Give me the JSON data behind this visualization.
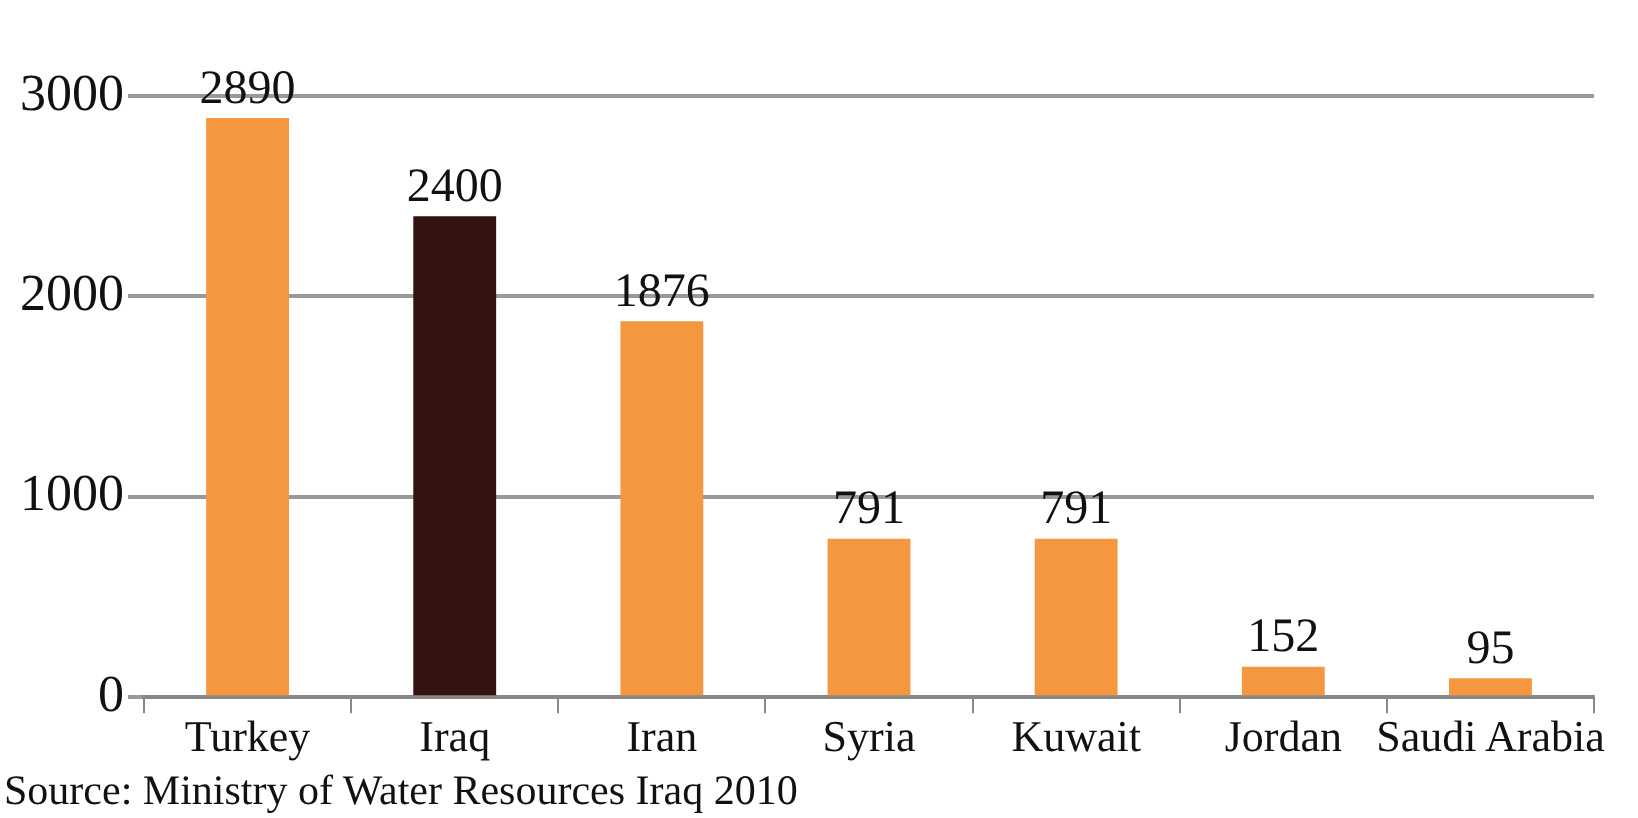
{
  "chart_data": {
    "type": "bar",
    "categories": [
      "Turkey",
      "Iraq",
      "Iran",
      "Syria",
      "Kuwait",
      "Jordan",
      "Saudi Arabia"
    ],
    "values": [
      2890,
      2400,
      1876,
      791,
      791,
      152,
      95
    ],
    "colors": [
      "#f5973f",
      "#33120f",
      "#f5973f",
      "#f5973f",
      "#f5973f",
      "#f5973f",
      "#f5973f"
    ],
    "ylim": [
      0,
      3000
    ],
    "yticks": [
      0,
      1000,
      2000,
      3000
    ],
    "grid": "y",
    "data_labels": true,
    "annotations": [
      "Source: Ministry of Water Resources Iraq 2010"
    ]
  }
}
